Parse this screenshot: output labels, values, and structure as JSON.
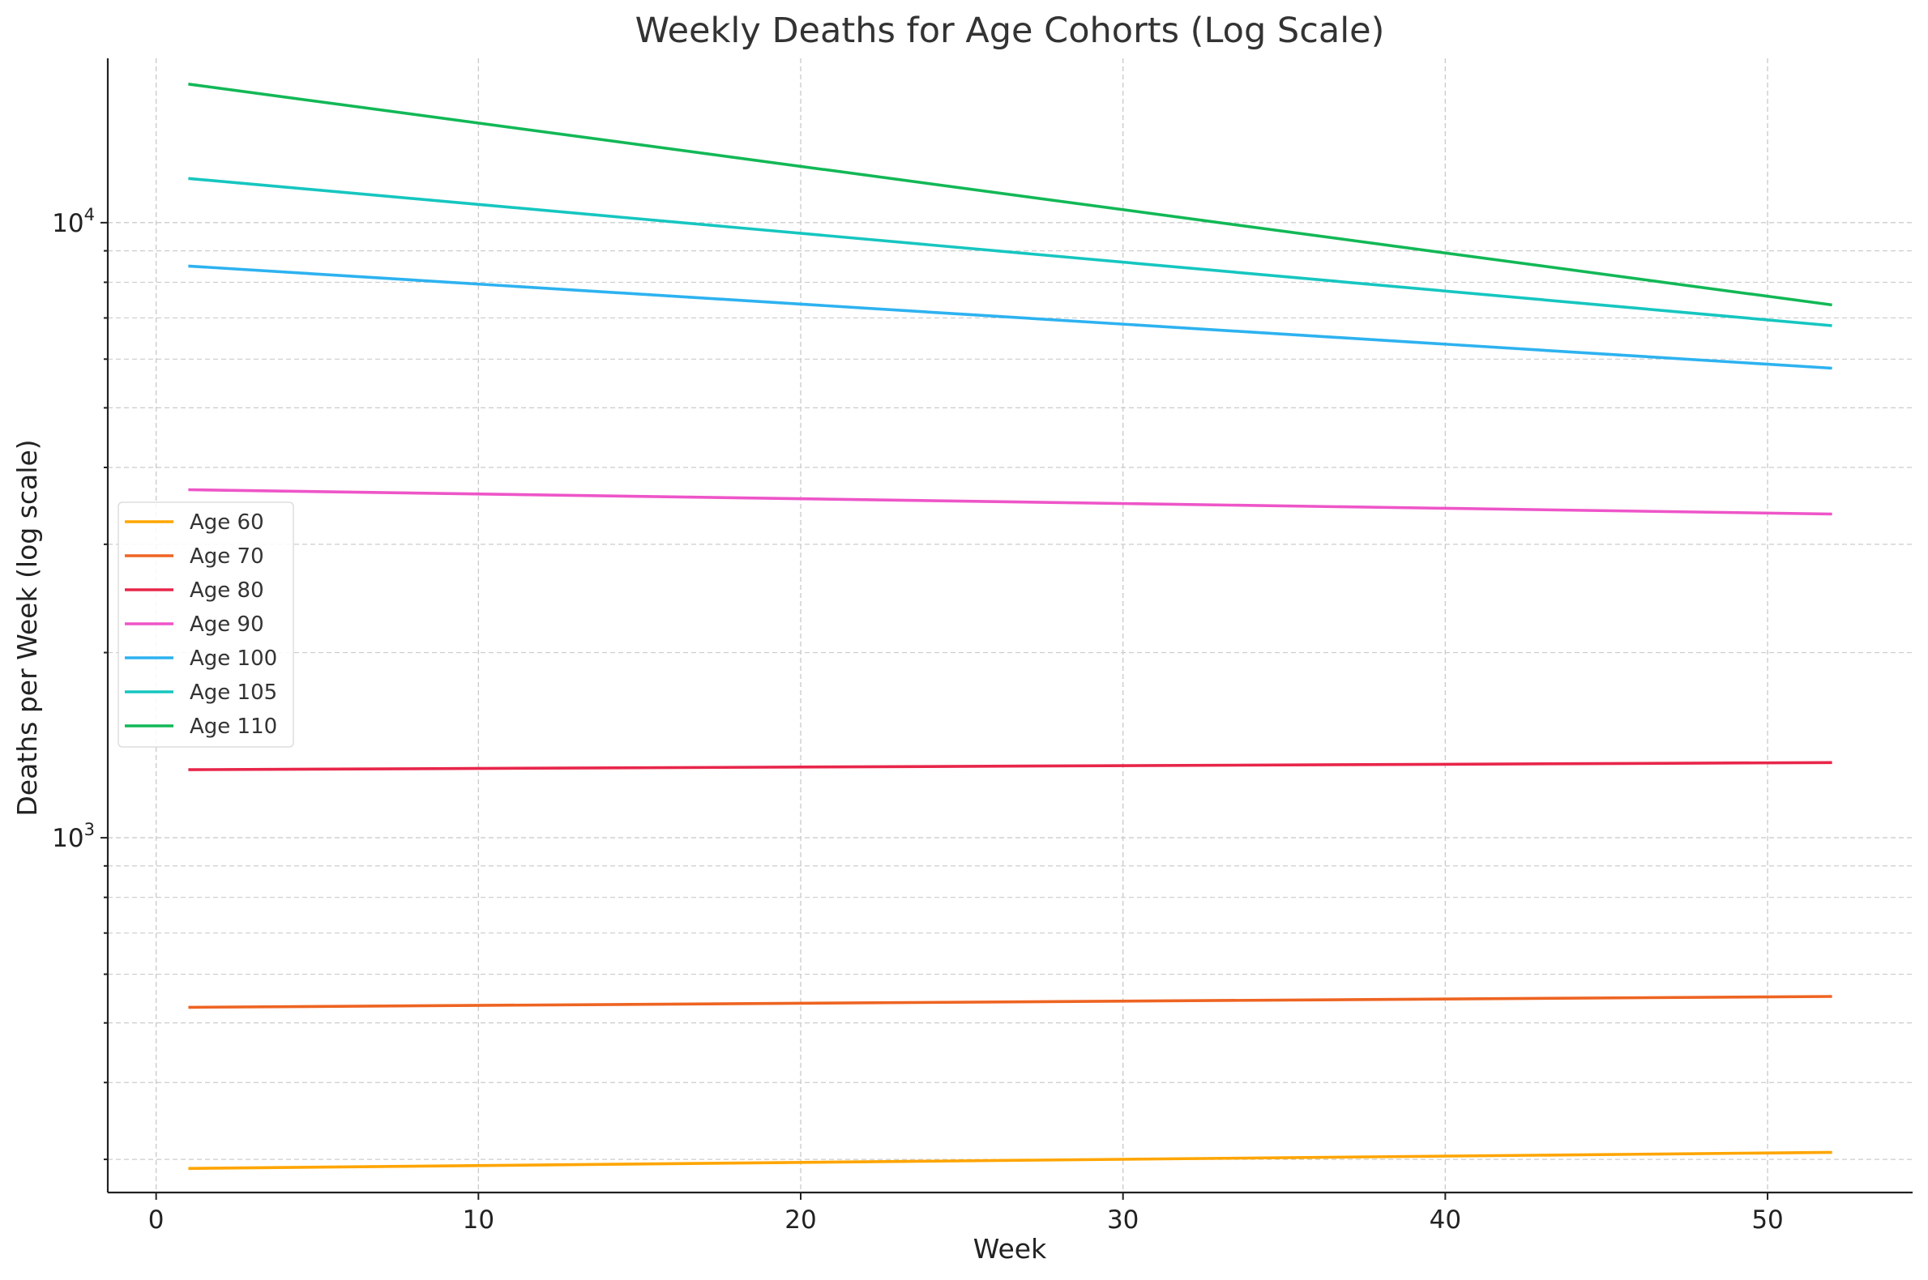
{
  "chart_data": {
    "type": "line",
    "title": "Weekly Deaths for Age Cohorts (Log Scale)",
    "xlabel": "Week",
    "ylabel": "Deaths per Week (log scale)",
    "yscale": "log",
    "xlim": [
      -1.5,
      54.5
    ],
    "ylim": [
      265,
      18500
    ],
    "x_ticks": [
      0,
      10,
      20,
      30,
      40,
      50
    ],
    "y_major_ticks": [
      {
        "value": 1000,
        "base": "10",
        "exp": "3"
      },
      {
        "value": 10000,
        "base": "10",
        "exp": "4"
      }
    ],
    "y_minor_ticks": [
      300,
      400,
      500,
      600,
      700,
      800,
      900,
      2000,
      3000,
      4000,
      5000,
      6000,
      7000,
      8000,
      9000
    ],
    "grid": true,
    "legend_position": "center-left",
    "x": [
      1,
      52
    ],
    "series": [
      {
        "name": "Age 60",
        "color": "#FFA500",
        "values": [
          290,
          308
        ]
      },
      {
        "name": "Age 70",
        "color": "#EE6422",
        "values": [
          530,
          552
        ]
      },
      {
        "name": "Age 80",
        "color": "#E8264A",
        "values": [
          1290,
          1325
        ]
      },
      {
        "name": "Age 90",
        "color": "#EE55C8",
        "values": [
          3680,
          3360
        ]
      },
      {
        "name": "Age 100",
        "color": "#2DB2F0",
        "values": [
          8500,
          5800
        ]
      },
      {
        "name": "Age 105",
        "color": "#16C6C0",
        "values": [
          11800,
          6800
        ]
      },
      {
        "name": "Age 110",
        "color": "#12B856",
        "values": [
          16800,
          7350
        ]
      }
    ]
  }
}
